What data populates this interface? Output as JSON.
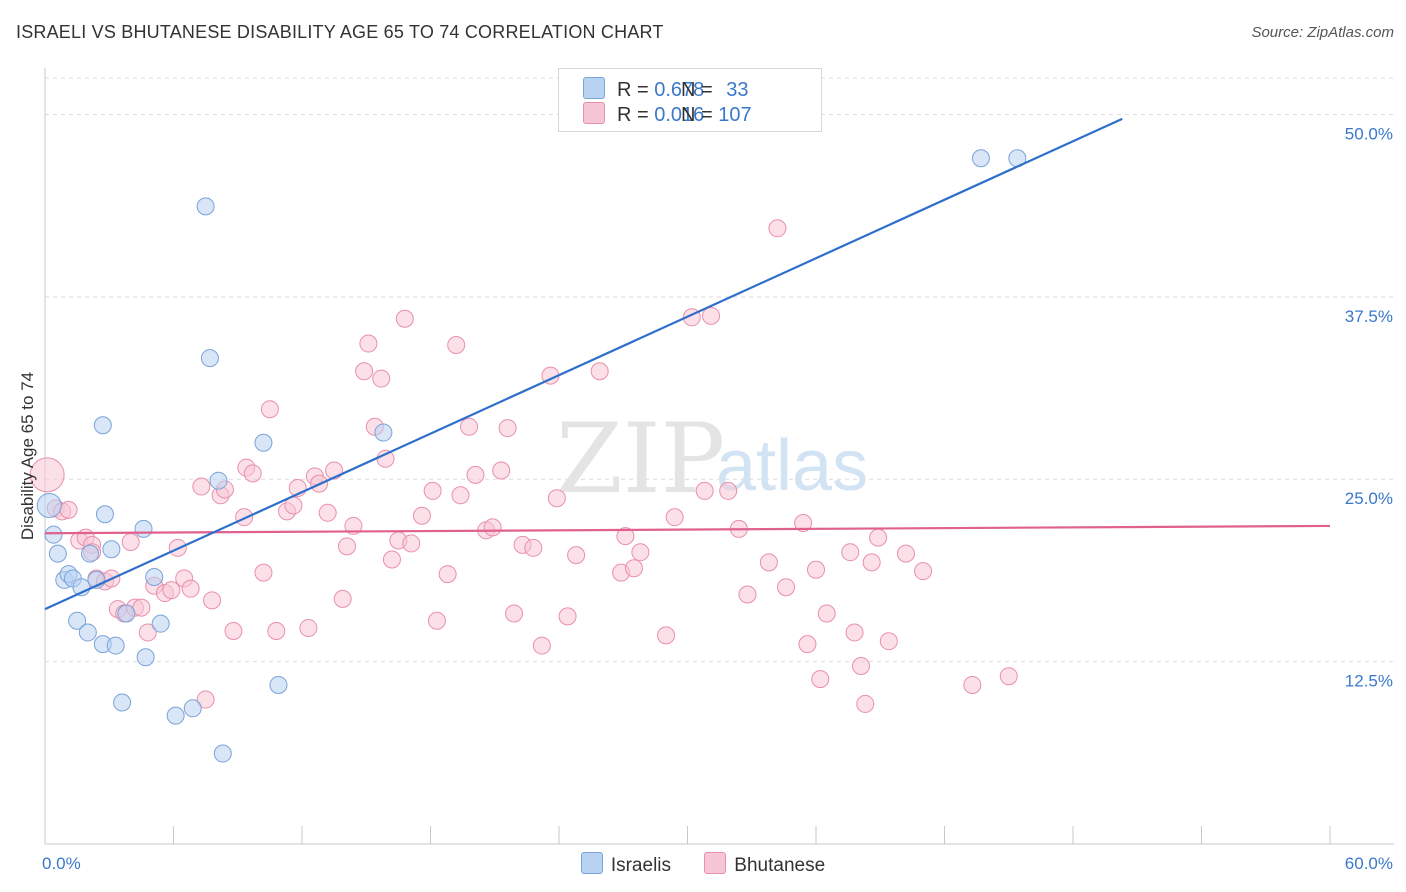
{
  "header": {
    "title": "ISRAELI VS BHUTANESE DISABILITY AGE 65 TO 74 CORRELATION CHART",
    "source": "Source: ZipAtlas.com"
  },
  "watermark": {
    "zip": "ZIP",
    "atlas": "atlas"
  },
  "colors": {
    "israelis_fill": "#b8d2f2",
    "israelis_stroke": "#7aa3d8",
    "israelis_line": "#2d6fcb",
    "bhutanese_fill": "#f7c6d6",
    "bhutanese_stroke": "#e98fae",
    "bhutanese_line": "#e0608f",
    "axis_label": "#3a78c9"
  },
  "legend": {
    "israelis": {
      "r_label": "R = ",
      "r_value": "0.678",
      "n_label": "N = ",
      "n_value": "33"
    },
    "bhutanese": {
      "r_label": "R = ",
      "r_value": "0.016",
      "n_label": "N = ",
      "n_value": "107"
    }
  },
  "bottom_legend": {
    "israelis": "Israelis",
    "bhutanese": "Bhutanese"
  },
  "chart_data": {
    "type": "scatter",
    "title": "ISRAELI VS BHUTANESE DISABILITY AGE 65 TO 74 CORRELATION CHART",
    "xlabel": "",
    "ylabel": "Disability Age 65 to 74",
    "xlim": [
      0,
      60
    ],
    "ylim": [
      0,
      52.5
    ],
    "x_tick_labels": {
      "left": "0.0%",
      "right": "60.0%"
    },
    "y_ticks": [
      {
        "value": 12.5,
        "label": "12.5%"
      },
      {
        "value": 25.0,
        "label": "25.0%"
      },
      {
        "value": 37.5,
        "label": "37.5%"
      },
      {
        "value": 50.0,
        "label": "50.0%"
      }
    ],
    "series": [
      {
        "name": "Israelis",
        "R": 0.678,
        "N": 33,
        "trend": [
          [
            0.0,
            16.1
          ],
          [
            50.3,
            49.7
          ]
        ],
        "points": [
          [
            0.2,
            23.2
          ],
          [
            0.4,
            21.2
          ],
          [
            0.6,
            19.9
          ],
          [
            0.9,
            18.1
          ],
          [
            1.1,
            18.5
          ],
          [
            1.3,
            18.2
          ],
          [
            1.5,
            15.3
          ],
          [
            1.7,
            17.6
          ],
          [
            2.0,
            14.5
          ],
          [
            2.1,
            19.9
          ],
          [
            2.4,
            18.1
          ],
          [
            2.7,
            13.7
          ],
          [
            2.7,
            28.7
          ],
          [
            2.8,
            22.6
          ],
          [
            3.1,
            20.2
          ],
          [
            3.3,
            13.6
          ],
          [
            3.6,
            9.7
          ],
          [
            3.8,
            15.8
          ],
          [
            4.6,
            21.6
          ],
          [
            4.7,
            12.8
          ],
          [
            5.1,
            18.3
          ],
          [
            5.4,
            15.1
          ],
          [
            6.1,
            8.8
          ],
          [
            6.9,
            9.3
          ],
          [
            7.5,
            43.7
          ],
          [
            7.7,
            33.3
          ],
          [
            8.1,
            24.9
          ],
          [
            8.3,
            6.2
          ],
          [
            10.2,
            27.5
          ],
          [
            10.9,
            10.9
          ],
          [
            15.8,
            28.2
          ],
          [
            43.7,
            47.0
          ],
          [
            45.4,
            47.0
          ]
        ]
      },
      {
        "name": "Bhutanese",
        "R": 0.016,
        "N": 107,
        "trend": [
          [
            0.0,
            21.3
          ],
          [
            60.0,
            21.8
          ]
        ],
        "points": [
          [
            0.1,
            25.3
          ],
          [
            0.5,
            23.0
          ],
          [
            0.8,
            22.8
          ],
          [
            1.1,
            22.9
          ],
          [
            1.6,
            20.8
          ],
          [
            1.9,
            21.0
          ],
          [
            2.2,
            20.5
          ],
          [
            2.2,
            20.0
          ],
          [
            2.4,
            18.2
          ],
          [
            2.8,
            18.0
          ],
          [
            3.1,
            18.2
          ],
          [
            3.4,
            16.1
          ],
          [
            3.7,
            15.8
          ],
          [
            4.0,
            20.7
          ],
          [
            4.2,
            16.2
          ],
          [
            4.5,
            16.2
          ],
          [
            4.8,
            14.5
          ],
          [
            5.1,
            17.7
          ],
          [
            5.6,
            17.2
          ],
          [
            5.9,
            17.4
          ],
          [
            6.2,
            20.3
          ],
          [
            6.5,
            18.2
          ],
          [
            6.8,
            17.5
          ],
          [
            7.3,
            24.5
          ],
          [
            7.5,
            9.9
          ],
          [
            7.8,
            16.7
          ],
          [
            8.2,
            23.9
          ],
          [
            8.4,
            24.3
          ],
          [
            8.8,
            14.6
          ],
          [
            9.3,
            22.4
          ],
          [
            9.4,
            25.8
          ],
          [
            9.7,
            25.4
          ],
          [
            10.2,
            18.6
          ],
          [
            10.5,
            29.8
          ],
          [
            10.8,
            14.6
          ],
          [
            11.3,
            22.8
          ],
          [
            11.6,
            23.2
          ],
          [
            11.8,
            24.4
          ],
          [
            12.3,
            14.8
          ],
          [
            12.6,
            25.2
          ],
          [
            12.8,
            24.7
          ],
          [
            13.2,
            22.7
          ],
          [
            13.5,
            25.6
          ],
          [
            13.9,
            16.8
          ],
          [
            14.1,
            20.4
          ],
          [
            14.4,
            21.8
          ],
          [
            14.9,
            32.4
          ],
          [
            15.1,
            34.3
          ],
          [
            15.4,
            28.6
          ],
          [
            15.7,
            31.9
          ],
          [
            15.9,
            26.4
          ],
          [
            16.2,
            19.5
          ],
          [
            16.5,
            20.8
          ],
          [
            16.8,
            36.0
          ],
          [
            17.1,
            20.6
          ],
          [
            17.6,
            22.5
          ],
          [
            18.1,
            24.2
          ],
          [
            18.3,
            15.3
          ],
          [
            18.8,
            18.5
          ],
          [
            19.2,
            34.2
          ],
          [
            19.4,
            23.9
          ],
          [
            19.8,
            28.6
          ],
          [
            20.1,
            25.3
          ],
          [
            20.6,
            21.5
          ],
          [
            20.9,
            21.7
          ],
          [
            21.3,
            25.6
          ],
          [
            21.6,
            28.5
          ],
          [
            21.9,
            15.8
          ],
          [
            22.3,
            20.5
          ],
          [
            22.8,
            20.3
          ],
          [
            23.2,
            13.6
          ],
          [
            23.6,
            32.1
          ],
          [
            23.9,
            23.7
          ],
          [
            24.4,
            15.6
          ],
          [
            24.8,
            19.8
          ],
          [
            25.9,
            32.4
          ],
          [
            26.9,
            18.6
          ],
          [
            27.1,
            21.1
          ],
          [
            27.5,
            18.9
          ],
          [
            27.8,
            20.0
          ],
          [
            29.0,
            14.3
          ],
          [
            29.4,
            22.4
          ],
          [
            30.2,
            36.1
          ],
          [
            30.8,
            24.2
          ],
          [
            31.1,
            36.2
          ],
          [
            31.9,
            24.2
          ],
          [
            32.4,
            21.6
          ],
          [
            32.8,
            17.1
          ],
          [
            33.8,
            19.3
          ],
          [
            34.2,
            42.2
          ],
          [
            34.6,
            17.6
          ],
          [
            35.4,
            22.0
          ],
          [
            35.6,
            13.7
          ],
          [
            36.0,
            18.8
          ],
          [
            36.2,
            11.3
          ],
          [
            36.5,
            15.8
          ],
          [
            37.6,
            20.0
          ],
          [
            37.8,
            14.5
          ],
          [
            38.1,
            12.2
          ],
          [
            38.3,
            9.6
          ],
          [
            38.6,
            19.3
          ],
          [
            38.9,
            21.0
          ],
          [
            39.4,
            13.9
          ],
          [
            40.2,
            19.9
          ],
          [
            41.0,
            18.7
          ],
          [
            43.3,
            10.9
          ],
          [
            45.0,
            11.5
          ]
        ]
      }
    ]
  }
}
